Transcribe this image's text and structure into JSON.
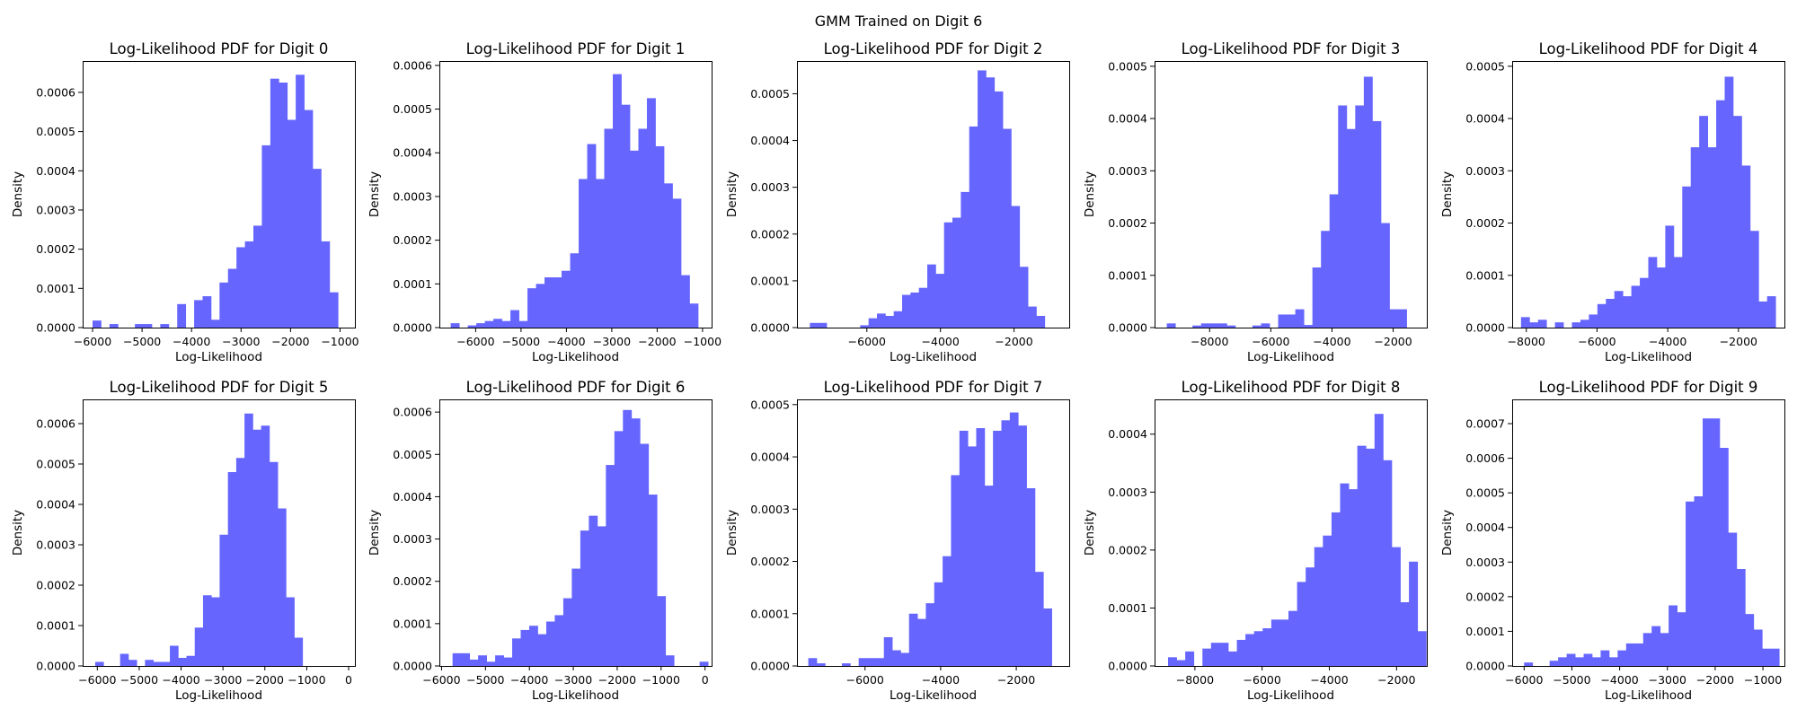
{
  "figure": {
    "suptitle": "GMM Trained on Digit 6",
    "bar_color": "#6666ff"
  },
  "chart_data": [
    {
      "type": "bar",
      "title": "Log-Likelihood PDF for Digit 0",
      "xlabel": "Log-Likelihood",
      "ylabel": "Density",
      "xlim": [
        -6200,
        -700
      ],
      "ylim": [
        0,
        0.00068
      ],
      "xticks": [
        -6000,
        -5000,
        -4000,
        -3000,
        -2000,
        -1000
      ],
      "xticklabels": [
        "−6000",
        "−5000",
        "−4000",
        "−3000",
        "−2000",
        "−1000"
      ],
      "yticks": [
        0,
        0.0001,
        0.0002,
        0.0003,
        0.0004,
        0.0005,
        0.0006
      ],
      "yticklabels": [
        "0.0000",
        "0.0001",
        "0.0002",
        "0.0003",
        "0.0004",
        "0.0005",
        "0.0006"
      ],
      "bins": {
        "start": -6000,
        "width": 171
      },
      "values": [
        1.8e-05,
        0,
        9e-06,
        0,
        0,
        9e-06,
        9e-06,
        0,
        9e-06,
        0,
        6e-05,
        0,
        7e-05,
        8e-05,
        2e-05,
        0.000115,
        0.00015,
        0.000205,
        0.00022,
        0.00026,
        0.000465,
        0.000635,
        0.000625,
        0.00053,
        0.000645,
        0.000555,
        0.000405,
        0.00022,
        9e-05
      ]
    },
    {
      "type": "bar",
      "title": "Log-Likelihood PDF for Digit 1",
      "xlabel": "Log-Likelihood",
      "ylabel": "Density",
      "xlim": [
        -6800,
        -800
      ],
      "ylim": [
        0,
        0.00061
      ],
      "xticks": [
        -6000,
        -5000,
        -4000,
        -3000,
        -2000,
        -1000
      ],
      "xticklabels": [
        "−6000",
        "−5000",
        "−4000",
        "−3000",
        "−2000",
        "−1000"
      ],
      "yticks": [
        0,
        0.0001,
        0.0002,
        0.0003,
        0.0004,
        0.0005,
        0.0006
      ],
      "yticklabels": [
        "0.0000",
        "0.0001",
        "0.0002",
        "0.0003",
        "0.0004",
        "0.0005",
        "0.0006"
      ],
      "bins": {
        "start": -6550,
        "width": 188
      },
      "values": [
        1e-05,
        0,
        5e-06,
        1e-05,
        1.5e-05,
        2e-05,
        1.5e-05,
        4e-05,
        1.5e-05,
        9e-05,
        0.0001,
        0.000115,
        0.000115,
        0.00013,
        0.00017,
        0.00034,
        0.00042,
        0.00034,
        0.000455,
        0.00058,
        0.00051,
        0.000405,
        0.000455,
        0.000525,
        0.000415,
        0.00033,
        0.000295,
        0.00012,
        5.5e-05
      ]
    },
    {
      "type": "bar",
      "title": "Log-Likelihood PDF for Digit 2",
      "xlabel": "Log-Likelihood",
      "ylabel": "Density",
      "xlim": [
        -7900,
        -500
      ],
      "ylim": [
        0,
        0.00057
      ],
      "xticks": [
        -6000,
        -4000,
        -2000
      ],
      "xticklabels": [
        "−6000",
        "−4000",
        "−2000"
      ],
      "yticks": [
        0,
        0.0001,
        0.0002,
        0.0003,
        0.0004,
        0.0005
      ],
      "yticklabels": [
        "0.0000",
        "0.0001",
        "0.0002",
        "0.0003",
        "0.0004",
        "0.0005"
      ],
      "bins": {
        "start": -7550,
        "width": 228
      },
      "values": [
        1e-05,
        1e-05,
        0,
        0,
        0,
        0,
        5e-06,
        2e-05,
        3e-05,
        2.5e-05,
        3.5e-05,
        7e-05,
        7.5e-05,
        8.5e-05,
        0.000135,
        0.000115,
        0.000225,
        0.000235,
        0.00029,
        0.00043,
        0.00055,
        0.000535,
        0.000505,
        0.000425,
        0.00026,
        0.00013,
        4.5e-05,
        2.5e-05
      ]
    },
    {
      "type": "bar",
      "title": "Log-Likelihood PDF for Digit 3",
      "xlabel": "Log-Likelihood",
      "ylabel": "Density",
      "xlim": [
        -9800,
        -900
      ],
      "ylim": [
        0,
        0.00051
      ],
      "xticks": [
        -8000,
        -6000,
        -4000,
        -2000
      ],
      "xticklabels": [
        "−8000",
        "−6000",
        "−4000",
        "−2000"
      ],
      "yticks": [
        0,
        0.0001,
        0.0002,
        0.0003,
        0.0004,
        0.0005
      ],
      "yticklabels": [
        "0.0000",
        "0.0001",
        "0.0002",
        "0.0003",
        "0.0004",
        "0.0005"
      ],
      "bins": {
        "start": -9400,
        "width": 280
      },
      "values": [
        8e-06,
        0,
        0,
        4e-06,
        8e-06,
        8e-06,
        8e-06,
        4e-06,
        0,
        0,
        4e-06,
        8e-06,
        0,
        2.5e-05,
        2.5e-05,
        3.5e-05,
        5e-06,
        0.000115,
        0.000185,
        0.000255,
        0.000425,
        0.00038,
        0.000425,
        0.00048,
        0.000395,
        0.0002,
        3.5e-05,
        3.5e-05
      ]
    },
    {
      "type": "bar",
      "title": "Log-Likelihood PDF for Digit 4",
      "xlabel": "Log-Likelihood",
      "ylabel": "Density",
      "xlim": [
        -8400,
        -700
      ],
      "ylim": [
        0,
        0.00051
      ],
      "xticks": [
        -8000,
        -6000,
        -4000,
        -2000
      ],
      "xticklabels": [
        "−8000",
        "−6000",
        "−4000",
        "−2000"
      ],
      "yticks": [
        0,
        0.0001,
        0.0002,
        0.0003,
        0.0004,
        0.0005
      ],
      "yticklabels": [
        "0.0000",
        "0.0001",
        "0.0002",
        "0.0003",
        "0.0004",
        "0.0005"
      ],
      "bins": {
        "start": -8150,
        "width": 240
      },
      "values": [
        2e-05,
        1e-05,
        1.5e-05,
        0,
        1e-05,
        0,
        1e-05,
        1.5e-05,
        2.5e-05,
        4.5e-05,
        5.5e-05,
        7e-05,
        6e-05,
        8e-05,
        9.5e-05,
        0.000135,
        0.000115,
        0.000195,
        0.000135,
        0.00027,
        0.000345,
        0.000405,
        0.000345,
        0.000435,
        0.00048,
        0.000405,
        0.00031,
        0.000185,
        5e-05,
        6e-05
      ]
    },
    {
      "type": "bar",
      "title": "Log-Likelihood PDF for Digit 5",
      "xlabel": "Log-Likelihood",
      "ylabel": "Density",
      "xlim": [
        -6350,
        150
      ],
      "ylim": [
        0,
        0.00066
      ],
      "xticks": [
        -6000,
        -5000,
        -4000,
        -3000,
        -2000,
        -1000,
        0
      ],
      "xticklabels": [
        "−6000",
        "−5000",
        "−4000",
        "−3000",
        "−2000",
        "−1000",
        "0"
      ],
      "yticks": [
        0,
        0.0001,
        0.0002,
        0.0003,
        0.0004,
        0.0005,
        0.0006
      ],
      "yticklabels": [
        "0.0000",
        "0.0001",
        "0.0002",
        "0.0003",
        "0.0004",
        "0.0005",
        "0.0006"
      ],
      "bins": {
        "start": -6050,
        "width": 198
      },
      "values": [
        1e-05,
        0,
        0,
        3e-05,
        1.5e-05,
        0,
        1.5e-05,
        1e-05,
        1e-05,
        5e-05,
        2e-05,
        2.5e-05,
        9.5e-05,
        0.000175,
        0.00017,
        0.000325,
        0.00048,
        0.000515,
        0.000625,
        0.000585,
        0.000595,
        0.000505,
        0.00039,
        0.00017,
        7e-05,
        0
      ]
    },
    {
      "type": "bar",
      "title": "Log-Likelihood PDF for Digit 6",
      "xlabel": "Log-Likelihood",
      "ylabel": "Density",
      "xlim": [
        -6050,
        150
      ],
      "ylim": [
        0,
        0.00063
      ],
      "xticks": [
        -6000,
        -5000,
        -4000,
        -3000,
        -2000,
        -1000,
        0
      ],
      "xticklabels": [
        "−6000",
        "−5000",
        "−4000",
        "−3000",
        "−2000",
        "−1000",
        "0"
      ],
      "yticks": [
        0,
        0.0001,
        0.0002,
        0.0003,
        0.0004,
        0.0005,
        0.0006
      ],
      "yticklabels": [
        "0.0000",
        "0.0001",
        "0.0002",
        "0.0003",
        "0.0004",
        "0.0005",
        "0.0006"
      ],
      "bins": {
        "start": -5750,
        "width": 194
      },
      "values": [
        3e-05,
        3e-05,
        1.5e-05,
        2.5e-05,
        1e-05,
        2.5e-05,
        2e-05,
        6.5e-05,
        8.5e-05,
        9.5e-05,
        7.5e-05,
        0.000105,
        0.00012,
        0.00016,
        0.00023,
        0.00032,
        0.000355,
        0.00033,
        0.000475,
        0.000555,
        0.000605,
        0.000585,
        0.000525,
        0.000405,
        0.000165,
        2.5e-05,
        0,
        0,
        0,
        1e-05
      ]
    },
    {
      "type": "bar",
      "title": "Log-Likelihood PDF for Digit 7",
      "xlabel": "Log-Likelihood",
      "ylabel": "Density",
      "xlim": [
        -7800,
        -600
      ],
      "ylim": [
        0,
        0.00051
      ],
      "xticks": [
        -6000,
        -4000,
        -2000
      ],
      "xticklabels": [
        "−6000",
        "−4000",
        "−2000"
      ],
      "yticks": [
        0,
        0.0001,
        0.0002,
        0.0003,
        0.0004,
        0.0005
      ],
      "yticklabels": [
        "0.0000",
        "0.0001",
        "0.0002",
        "0.0003",
        "0.0004",
        "0.0005"
      ],
      "bins": {
        "start": -7500,
        "width": 222
      },
      "values": [
        1.5e-05,
        5e-06,
        0,
        0,
        5e-06,
        0,
        1.5e-05,
        1.5e-05,
        1.5e-05,
        5.5e-05,
        3e-05,
        2.5e-05,
        0.0001,
        9e-05,
        0.00012,
        0.00016,
        0.00021,
        0.000365,
        0.00045,
        0.00042,
        0.000455,
        0.000345,
        0.00045,
        0.00047,
        0.000485,
        0.00046,
        0.00034,
        0.00018,
        0.00011
      ]
    },
    {
      "type": "bar",
      "title": "Log-Likelihood PDF for Digit 8",
      "xlabel": "Log-Likelihood",
      "ylabel": "Density",
      "xlim": [
        -9200,
        -1100
      ],
      "ylim": [
        0,
        0.00046
      ],
      "xticks": [
        -8000,
        -6000,
        -4000,
        -2000
      ],
      "xticklabels": [
        "−8000",
        "−6000",
        "−4000",
        "−2000"
      ],
      "yticks": [
        0,
        0.0001,
        0.0002,
        0.0003,
        0.0004
      ],
      "yticklabels": [
        "0.0000",
        "0.0001",
        "0.0002",
        "0.0003",
        "0.0004"
      ],
      "bins": {
        "start": -8800,
        "width": 256
      },
      "values": [
        1.5e-05,
        1e-05,
        2.5e-05,
        0,
        3e-05,
        4e-05,
        4e-05,
        2.5e-05,
        4.5e-05,
        5.5e-05,
        6e-05,
        6.5e-05,
        8e-05,
        8e-05,
        9.5e-05,
        0.000145,
        0.00017,
        0.000205,
        0.000225,
        0.000265,
        0.000315,
        0.000305,
        0.00038,
        0.000375,
        0.000435,
        0.000355,
        0.000205,
        0.00011,
        0.00018,
        6e-05
      ]
    },
    {
      "type": "bar",
      "title": "Log-Likelihood PDF for Digit 9",
      "xlabel": "Log-Likelihood",
      "ylabel": "Density",
      "xlim": [
        -6250,
        -550
      ],
      "ylim": [
        0,
        0.00077
      ],
      "xticks": [
        -6000,
        -5000,
        -4000,
        -3000,
        -2000,
        -1000
      ],
      "xticklabels": [
        "−6000",
        "−5000",
        "−4000",
        "−3000",
        "−2000",
        "−1000"
      ],
      "yticks": [
        0,
        0.0001,
        0.0002,
        0.0003,
        0.0004,
        0.0005,
        0.0006,
        0.0007
      ],
      "yticklabels": [
        "0.0000",
        "0.0001",
        "0.0002",
        "0.0003",
        "0.0004",
        "0.0005",
        "0.0006",
        "0.0007"
      ],
      "bins": {
        "start": -6000,
        "width": 178
      },
      "values": [
        1e-05,
        0,
        0,
        1.5e-05,
        2.5e-05,
        3.5e-05,
        2.5e-05,
        3.5e-05,
        2.5e-05,
        4.5e-05,
        2.5e-05,
        4.5e-05,
        6.5e-05,
        6.5e-05,
        9.5e-05,
        0.000115,
        9.5e-05,
        0.000175,
        0.000155,
        0.000475,
        0.00049,
        0.000715,
        0.000715,
        0.00063,
        0.000385,
        0.00028,
        0.00015,
        0.000105,
        5e-05,
        5e-05
      ]
    }
  ]
}
